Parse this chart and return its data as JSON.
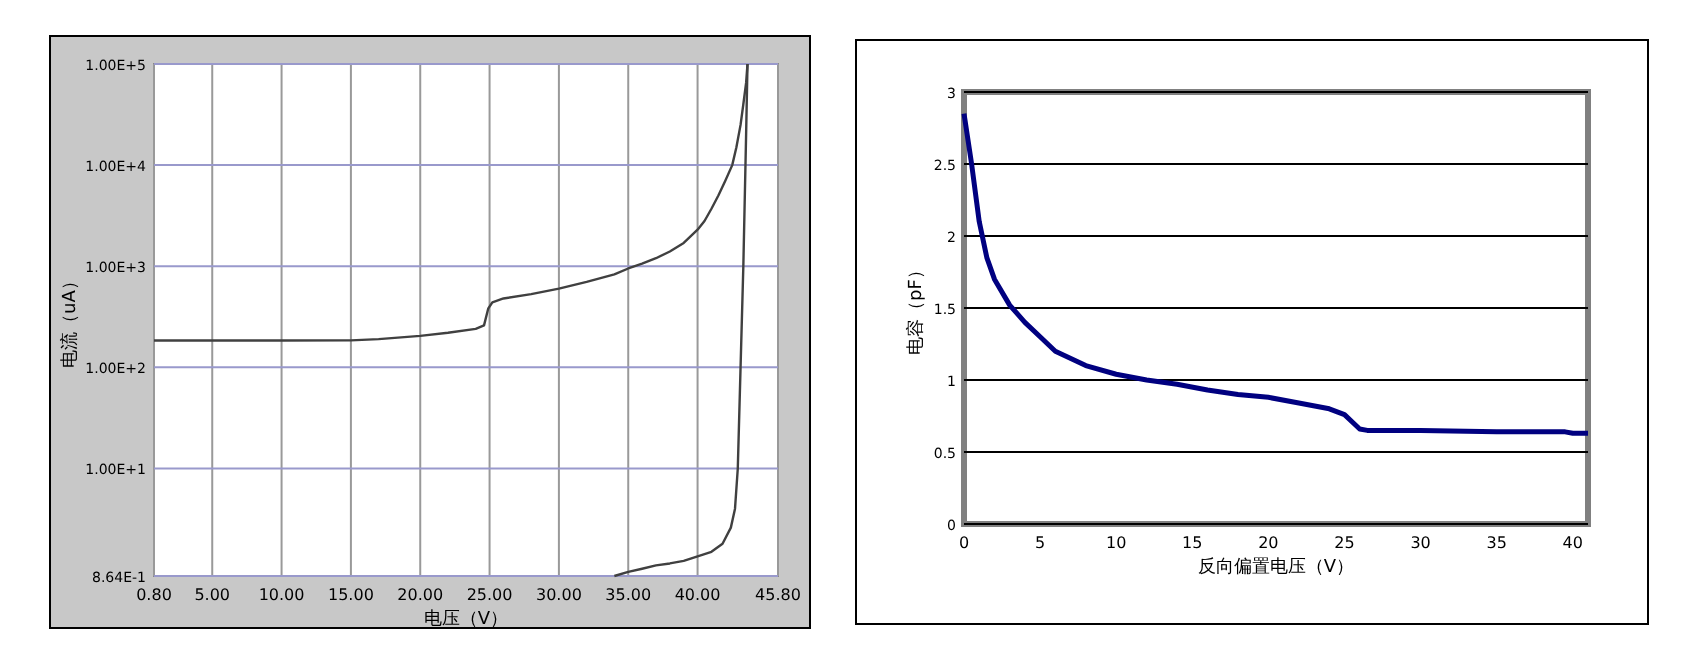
{
  "chart_data": [
    {
      "type": "line",
      "xlabel": "电压（V）",
      "ylabel": "电流（uA）",
      "log": "y",
      "grid": true,
      "xlim": [
        0.8,
        45.8
      ],
      "xticks": [
        {
          "value": 0.8,
          "label": "0.80"
        },
        {
          "value": 5,
          "label": "5.00"
        },
        {
          "value": 10,
          "label": "10.00"
        },
        {
          "value": 15,
          "label": "15.00"
        },
        {
          "value": 20,
          "label": "20.00"
        },
        {
          "value": 25,
          "label": "25.00"
        },
        {
          "value": 30,
          "label": "30.00"
        },
        {
          "value": 35,
          "label": "35.00"
        },
        {
          "value": 40,
          "label": "40.00"
        },
        {
          "value": 45.8,
          "label": "45.80"
        }
      ],
      "ylim": [
        0.864,
        100000
      ],
      "yticks": [
        {
          "value": 0.864,
          "label": "8.64E-1"
        },
        {
          "value": 10,
          "label": "1.00E+1"
        },
        {
          "value": 100,
          "label": "1.00E+2"
        },
        {
          "value": 1000,
          "label": "1.00E+3"
        },
        {
          "value": 10000,
          "label": "1.00E+4"
        },
        {
          "value": 100000,
          "label": "1.00E+5"
        }
      ],
      "series": [
        {
          "color": "#404040",
          "x": [
            0.8,
            5,
            10,
            15,
            17,
            20,
            22,
            24,
            24.6,
            24.9,
            25.2,
            26,
            28,
            30,
            32,
            34,
            35,
            36,
            37,
            38,
            39,
            40,
            40.5,
            41,
            41.5,
            42,
            42.5,
            42.8,
            43.1,
            43.3,
            43.5,
            43.6
          ],
          "values": [
            184,
            184,
            184,
            185,
            190,
            205,
            220,
            240,
            260,
            380,
            440,
            480,
            530,
            600,
            700,
            830,
            950,
            1060,
            1200,
            1400,
            1700,
            2300,
            2800,
            3700,
            5000,
            7000,
            10000,
            15000,
            25000,
            40000,
            65000,
            100000
          ]
        },
        {
          "color": "#404040",
          "x": [
            34,
            35,
            36,
            37,
            38,
            39,
            40,
            41,
            41.8,
            42.4,
            42.7,
            42.9,
            43.1,
            43.3,
            43.5,
            43.6
          ],
          "values": [
            0.864,
            0.95,
            1.02,
            1.1,
            1.15,
            1.22,
            1.35,
            1.5,
            1.8,
            2.6,
            4,
            10,
            100,
            1000,
            20000,
            100000
          ]
        }
      ]
    },
    {
      "type": "line",
      "xlabel": "反向偏置电压（V）",
      "ylabel": "电容（pF）",
      "grid": "y",
      "xlim": [
        0,
        41
      ],
      "xticks": [
        0,
        5,
        10,
        15,
        20,
        25,
        30,
        35,
        40
      ],
      "ylim": [
        0,
        3
      ],
      "yticks": [
        0,
        0.5,
        1,
        1.5,
        2,
        2.5,
        3
      ],
      "series": [
        {
          "color": "#000080",
          "x": [
            0,
            0.5,
            1,
            1.5,
            2,
            3,
            4,
            5,
            6,
            8,
            10,
            12,
            14,
            16,
            18,
            20,
            22,
            24,
            25,
            25.6,
            26,
            26.5,
            27,
            30,
            35,
            39.5,
            40,
            41
          ],
          "values": [
            2.85,
            2.5,
            2.1,
            1.85,
            1.7,
            1.52,
            1.4,
            1.3,
            1.2,
            1.1,
            1.04,
            1.0,
            0.97,
            0.93,
            0.9,
            0.88,
            0.84,
            0.8,
            0.76,
            0.7,
            0.66,
            0.65,
            0.65,
            0.65,
            0.64,
            0.64,
            0.63,
            0.63
          ]
        }
      ]
    }
  ]
}
